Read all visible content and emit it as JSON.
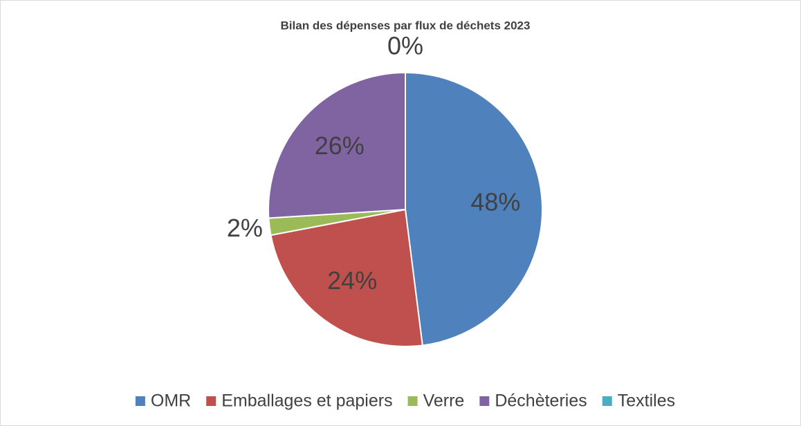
{
  "chart_data": {
    "type": "pie",
    "title": "Bilan des dépenses par flux de déchets 2023",
    "categories": [
      "OMR",
      "Emballages et papiers",
      "Verre",
      "Déchèteries",
      "Textiles"
    ],
    "values": [
      48,
      24,
      2,
      26,
      0
    ],
    "value_labels": [
      "48%",
      "24%",
      "2%",
      "26%",
      "0%"
    ],
    "colors": [
      "#4f81bd",
      "#c0504d",
      "#9bbb59",
      "#8064a2",
      "#4bacc6"
    ],
    "legend": "bottom"
  }
}
